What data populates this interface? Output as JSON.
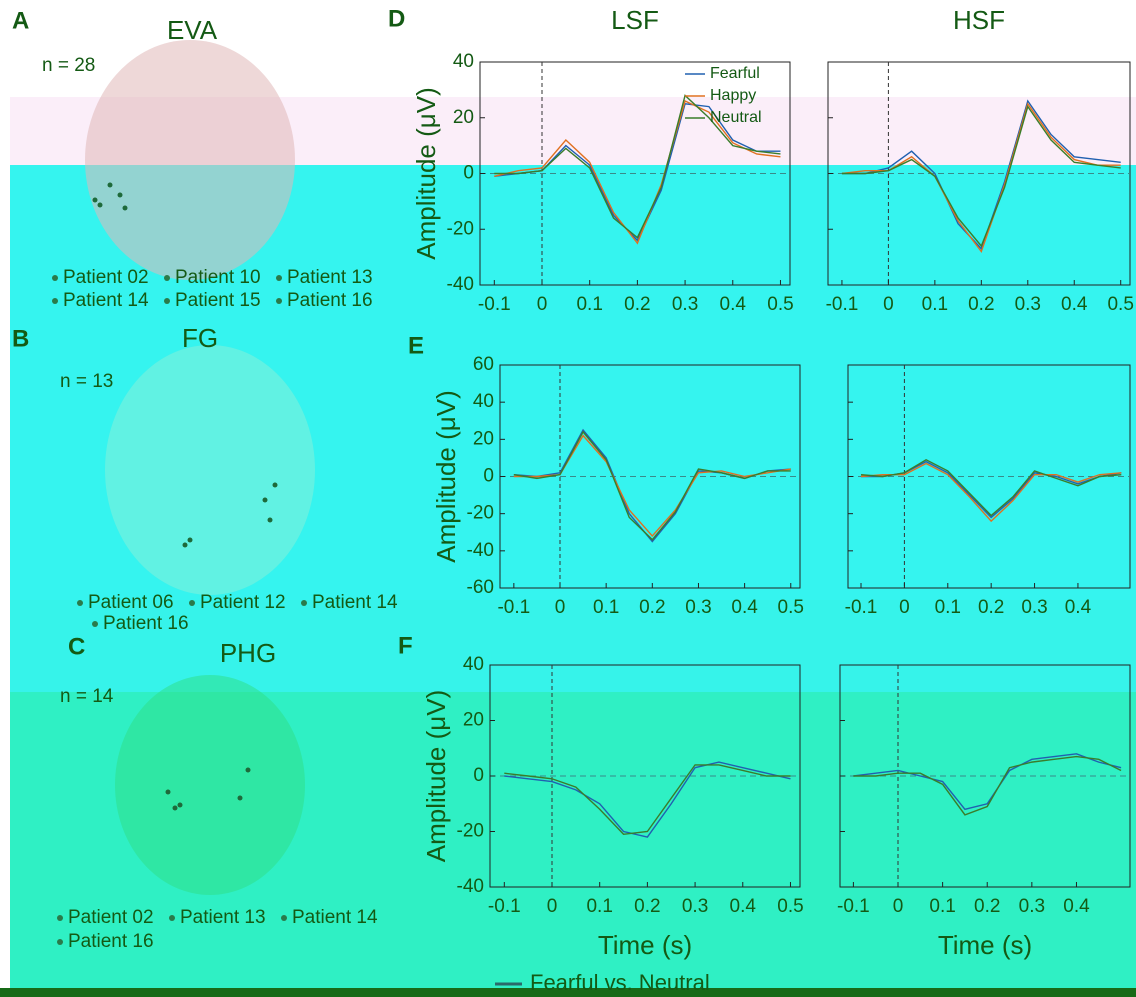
{
  "brain_panels": [
    {
      "letter": "A",
      "title": "EVA",
      "n": "n = 28",
      "patients": [
        "Patient 02",
        "Patient 10",
        "Patient 13",
        "Patient 14",
        "Patient 15",
        "Patient 16"
      ]
    },
    {
      "letter": "B",
      "title": "FG",
      "n": "n = 13",
      "patients": [
        "Patient 06",
        "Patient 12",
        "Patient 14",
        "Patient 16"
      ]
    },
    {
      "letter": "C",
      "title": "PHG",
      "n": "n = 14",
      "patients": [
        "Patient 02",
        "Patient 13",
        "Patient 14",
        "Patient 16"
      ]
    }
  ],
  "footer_legend": "Fearful vs. Neutral",
  "chart_data": [
    {
      "type": "line",
      "panel": "D",
      "title": "LSF",
      "ylabel": "Amplitude (μV)",
      "x": [
        -0.1,
        -0.05,
        0,
        0.05,
        0.1,
        0.15,
        0.2,
        0.25,
        0.3,
        0.35,
        0.4,
        0.45,
        0.5
      ],
      "series": [
        {
          "name": "Fearful",
          "color": "#2060b0",
          "values": [
            -1,
            0,
            1,
            10,
            3,
            -15,
            -24,
            -6,
            25,
            24,
            12,
            8,
            8
          ]
        },
        {
          "name": "Happy",
          "color": "#e07020",
          "values": [
            -1,
            1,
            2,
            12,
            4,
            -14,
            -25,
            -4,
            26,
            22,
            11,
            7,
            6
          ]
        },
        {
          "name": "Neutral",
          "color": "#3a7d2a",
          "values": [
            0,
            0,
            1,
            9,
            2,
            -16,
            -23,
            -5,
            28,
            20,
            10,
            8,
            7
          ]
        }
      ],
      "xlim": [
        -0.13,
        0.52
      ],
      "xticks": [
        -0.1,
        0,
        0.1,
        0.2,
        0.3,
        0.4,
        0.5
      ],
      "ylim": [
        -40,
        40
      ],
      "yticks": [
        -40,
        -20,
        0,
        20,
        40
      ],
      "legend": "upper right"
    },
    {
      "type": "line",
      "title": "HSF",
      "x": [
        -0.1,
        -0.05,
        0,
        0.05,
        0.1,
        0.15,
        0.2,
        0.25,
        0.3,
        0.35,
        0.4,
        0.45,
        0.5
      ],
      "series": [
        {
          "color": "#2060b0",
          "values": [
            0,
            0,
            2,
            8,
            0,
            -18,
            -27,
            -3,
            26,
            14,
            6,
            5,
            4
          ]
        },
        {
          "color": "#e07020",
          "values": [
            0,
            1,
            1,
            6,
            -1,
            -17,
            -28,
            -4,
            25,
            13,
            5,
            3,
            3
          ]
        },
        {
          "color": "#3a7d2a",
          "values": [
            0,
            0,
            1,
            5,
            -1,
            -16,
            -26,
            -5,
            24,
            12,
            4,
            3,
            2
          ]
        }
      ],
      "xlim": [
        -0.13,
        0.52
      ],
      "xticks": [
        -0.1,
        0,
        0.1,
        0.2,
        0.3,
        0.4,
        0.5
      ],
      "ylim": [
        -40,
        40
      ],
      "yticks": [
        -40,
        -20,
        0,
        20,
        40
      ]
    },
    {
      "type": "line",
      "panel": "E",
      "ylabel": "Amplitude (μV)",
      "x": [
        -0.1,
        -0.05,
        0,
        0.05,
        0.1,
        0.15,
        0.2,
        0.25,
        0.3,
        0.35,
        0.4,
        0.45,
        0.5
      ],
      "series": [
        {
          "color": "#2060b0",
          "values": [
            1,
            0,
            2,
            25,
            10,
            -20,
            -35,
            -20,
            3,
            2,
            -1,
            3,
            4
          ]
        },
        {
          "color": "#e07020",
          "values": [
            0,
            0,
            1,
            22,
            8,
            -18,
            -32,
            -18,
            2,
            3,
            0,
            2,
            4
          ]
        },
        {
          "color": "#3a7d2a",
          "values": [
            1,
            -1,
            1,
            24,
            9,
            -22,
            -34,
            -19,
            4,
            2,
            -1,
            3,
            3
          ]
        }
      ],
      "xlim": [
        -0.13,
        0.52
      ],
      "xticks": [
        -0.1,
        0,
        0.1,
        0.2,
        0.3,
        0.4,
        0.5
      ],
      "ylim": [
        -60,
        60
      ],
      "yticks": [
        -60,
        -40,
        -20,
        0,
        20,
        40,
        60
      ]
    },
    {
      "type": "line",
      "x": [
        -0.1,
        -0.05,
        0,
        0.05,
        0.1,
        0.15,
        0.2,
        0.25,
        0.3,
        0.35,
        0.4,
        0.45,
        0.5
      ],
      "series": [
        {
          "color": "#2060b0",
          "values": [
            0,
            0,
            2,
            8,
            2,
            -10,
            -22,
            -12,
            2,
            0,
            -4,
            0,
            2
          ]
        },
        {
          "color": "#e07020",
          "values": [
            0,
            1,
            1,
            7,
            1,
            -11,
            -24,
            -13,
            1,
            1,
            -3,
            1,
            2
          ]
        },
        {
          "color": "#3a7d2a",
          "values": [
            1,
            0,
            2,
            9,
            3,
            -9,
            -21,
            -11,
            3,
            -1,
            -5,
            0,
            1
          ]
        }
      ],
      "xlim": [
        -0.13,
        0.52
      ],
      "xticks": [
        -0.1,
        0,
        0.1,
        0.2,
        0.3,
        0.4
      ],
      "ylim": [
        -60,
        60
      ],
      "yticks": [
        -60,
        -40,
        -20,
        0,
        20,
        40,
        60
      ]
    },
    {
      "type": "line",
      "panel": "F",
      "ylabel": "Amplitude (μV)",
      "xlabel": "Time (s)",
      "x": [
        -0.1,
        -0.05,
        0,
        0.05,
        0.1,
        0.15,
        0.2,
        0.25,
        0.3,
        0.35,
        0.4,
        0.45,
        0.5
      ],
      "series": [
        {
          "color": "#2060b0",
          "values": [
            0,
            -1,
            -2,
            -5,
            -10,
            -20,
            -22,
            -10,
            3,
            5,
            3,
            1,
            -1
          ]
        },
        {
          "color": "#3a7d2a",
          "values": [
            1,
            0,
            -1,
            -4,
            -12,
            -21,
            -20,
            -8,
            4,
            4,
            2,
            0,
            0
          ]
        }
      ],
      "xlim": [
        -0.13,
        0.52
      ],
      "xticks": [
        -0.1,
        0,
        0.1,
        0.2,
        0.3,
        0.4,
        0.5
      ],
      "ylim": [
        -40,
        40
      ],
      "yticks": [
        -40,
        -20,
        0,
        20,
        40
      ]
    },
    {
      "type": "line",
      "xlabel": "Time (s)",
      "x": [
        -0.1,
        -0.05,
        0,
        0.05,
        0.1,
        0.15,
        0.2,
        0.25,
        0.3,
        0.35,
        0.4,
        0.45,
        0.5
      ],
      "series": [
        {
          "color": "#2060b0",
          "values": [
            0,
            1,
            2,
            0,
            -2,
            -12,
            -10,
            2,
            6,
            7,
            8,
            5,
            3
          ]
        },
        {
          "color": "#3a7d2a",
          "values": [
            0,
            0,
            1,
            1,
            -3,
            -14,
            -11,
            3,
            5,
            6,
            7,
            6,
            2
          ]
        }
      ],
      "xlim": [
        -0.13,
        0.52
      ],
      "xticks": [
        -0.1,
        0,
        0.1,
        0.2,
        0.3,
        0.4
      ],
      "ylim": [
        -40,
        40
      ],
      "yticks": [
        -40,
        -20,
        0,
        20,
        40
      ]
    }
  ]
}
